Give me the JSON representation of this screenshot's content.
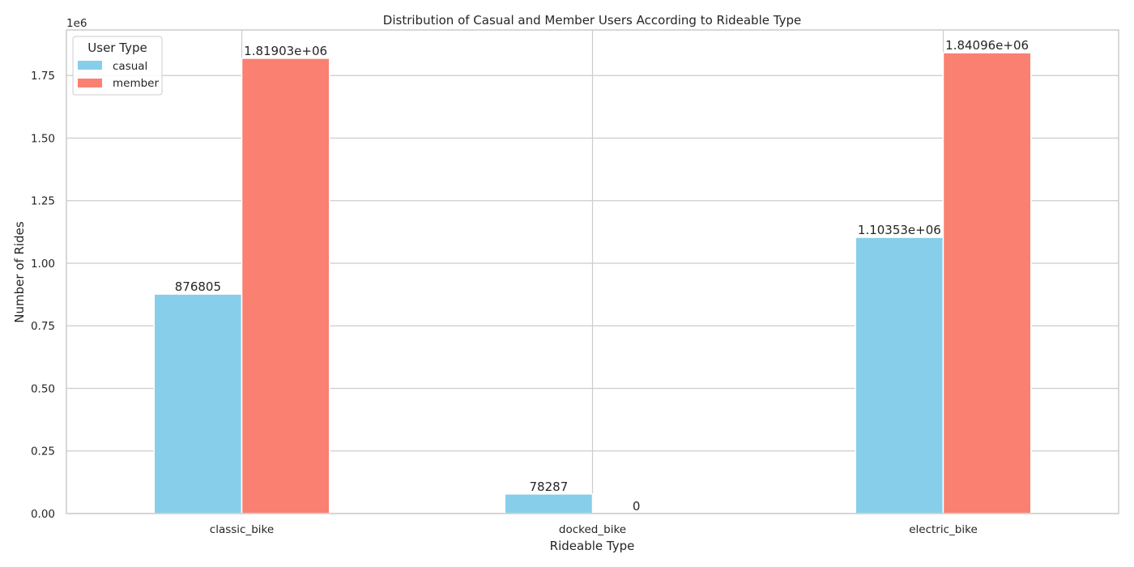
{
  "chart_data": {
    "type": "bar",
    "title": "Distribution of Casual and Member Users According to Rideable Type",
    "xlabel": "Rideable Type",
    "ylabel": "Number of Rides",
    "y_scale_label": "1e6",
    "categories": [
      "classic_bike",
      "docked_bike",
      "electric_bike"
    ],
    "series": [
      {
        "name": "casual",
        "color": "#87ceeb",
        "values": [
          876805,
          78287,
          1103530
        ],
        "labels": [
          "876805",
          "78287",
          "1.10353e+06"
        ]
      },
      {
        "name": "member",
        "color": "#fa8072",
        "values": [
          1819030,
          0,
          1840960
        ],
        "labels": [
          "1.81903e+06",
          "0",
          "1.84096e+06"
        ]
      }
    ],
    "ylim": [
      0,
      1932000
    ],
    "yticks": [
      0,
      250000,
      500000,
      750000,
      1000000,
      1250000,
      1500000,
      1750000
    ],
    "ytick_labels": [
      "0.00",
      "0.25",
      "0.50",
      "0.75",
      "1.00",
      "1.25",
      "1.50",
      "1.75"
    ],
    "grid": true,
    "legend": {
      "title": "User Type",
      "position": "top-left"
    }
  }
}
